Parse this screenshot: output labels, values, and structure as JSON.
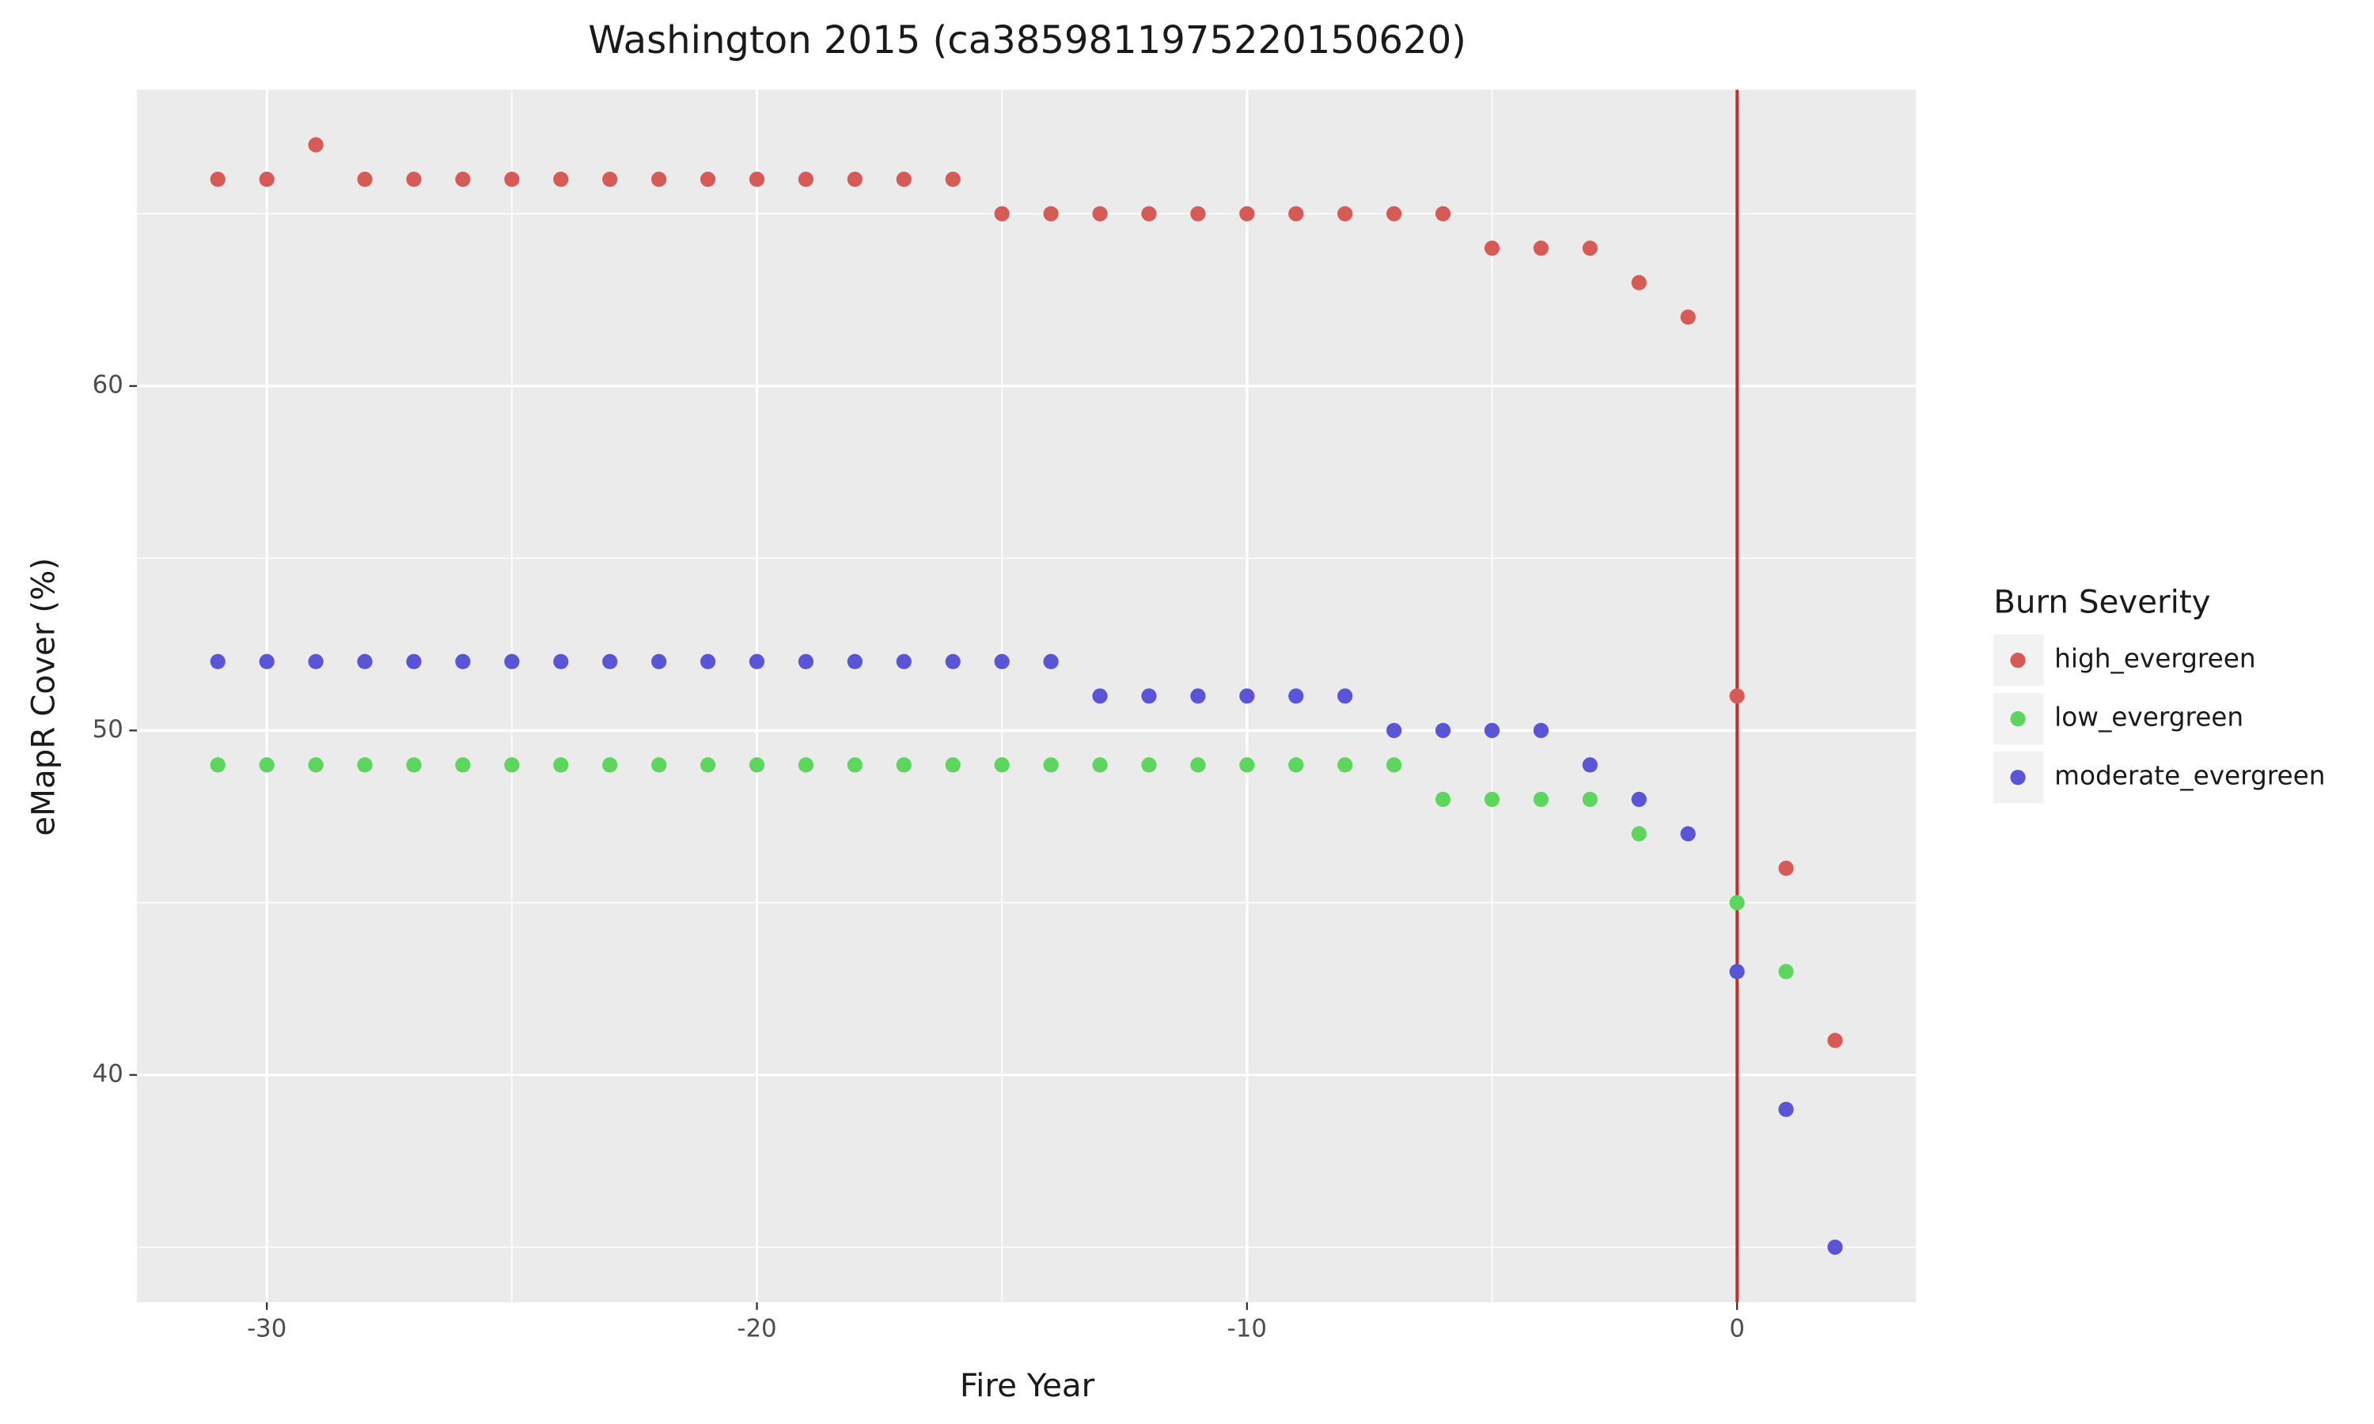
{
  "chart_data": {
    "type": "scatter",
    "title": "Washington 2015 (ca3859811975220150620)",
    "x_label": "Fire Year",
    "y_label": "eMapR Cover (%)",
    "xlim": [
      -32.65,
      3.65
    ],
    "ylim": [
      33.4,
      68.6
    ],
    "xticks": [
      -30,
      -20,
      -10,
      0
    ],
    "yticks": [
      40,
      50,
      60
    ],
    "x_minor_grid": [
      -25,
      -15,
      -5
    ],
    "y_minor_grid": [
      35,
      45,
      55,
      65
    ],
    "grid": true,
    "panel_color": "#ebebeb",
    "vline": {
      "x": 0,
      "color": "#cc2a2a"
    },
    "legend_title": "Burn Severity",
    "legend_position": "right",
    "series": [
      {
        "name": "high_evergreen",
        "color": "#d65a56",
        "x": [
          -31,
          -30,
          -29,
          -28,
          -27,
          -26,
          -25,
          -24,
          -23,
          -22,
          -21,
          -20,
          -19,
          -18,
          -17,
          -16,
          -15,
          -14,
          -13,
          -12,
          -11,
          -10,
          -9,
          -8,
          -7,
          -6,
          -5,
          -4,
          -3,
          -2,
          -1,
          0,
          1,
          2
        ],
        "values": [
          66,
          66,
          67,
          66,
          66,
          66,
          66,
          66,
          66,
          66,
          66,
          66,
          66,
          66,
          66,
          66,
          65,
          65,
          65,
          65,
          65,
          65,
          65,
          65,
          65,
          65,
          64,
          64,
          64,
          63,
          62,
          51,
          46,
          41
        ]
      },
      {
        "name": "low_evergreen",
        "color": "#5cd65c",
        "x": [
          -31,
          -30,
          -29,
          -28,
          -27,
          -26,
          -25,
          -24,
          -23,
          -22,
          -21,
          -20,
          -19,
          -18,
          -17,
          -16,
          -15,
          -14,
          -13,
          -12,
          -11,
          -10,
          -9,
          -8,
          -7,
          -6,
          -5,
          -4,
          -3,
          -2,
          0,
          1
        ],
        "values": [
          49,
          49,
          49,
          49,
          49,
          49,
          49,
          49,
          49,
          49,
          49,
          49,
          49,
          49,
          49,
          49,
          49,
          49,
          49,
          49,
          49,
          49,
          49,
          49,
          49,
          48,
          48,
          48,
          48,
          47,
          45,
          43
        ]
      },
      {
        "name": "moderate_evergreen",
        "color": "#5a55d6",
        "x": [
          -31,
          -30,
          -29,
          -28,
          -27,
          -26,
          -25,
          -24,
          -23,
          -22,
          -21,
          -20,
          -19,
          -18,
          -17,
          -16,
          -15,
          -14,
          -13,
          -12,
          -11,
          -10,
          -9,
          -8,
          -7,
          -6,
          -5,
          -4,
          -3,
          -2,
          -1,
          0,
          1,
          2
        ],
        "values": [
          52,
          52,
          52,
          52,
          52,
          52,
          52,
          52,
          52,
          52,
          52,
          52,
          52,
          52,
          52,
          52,
          52,
          52,
          51,
          51,
          51,
          51,
          51,
          51,
          50,
          50,
          50,
          50,
          49,
          48,
          47,
          43,
          39,
          35
        ]
      }
    ]
  }
}
